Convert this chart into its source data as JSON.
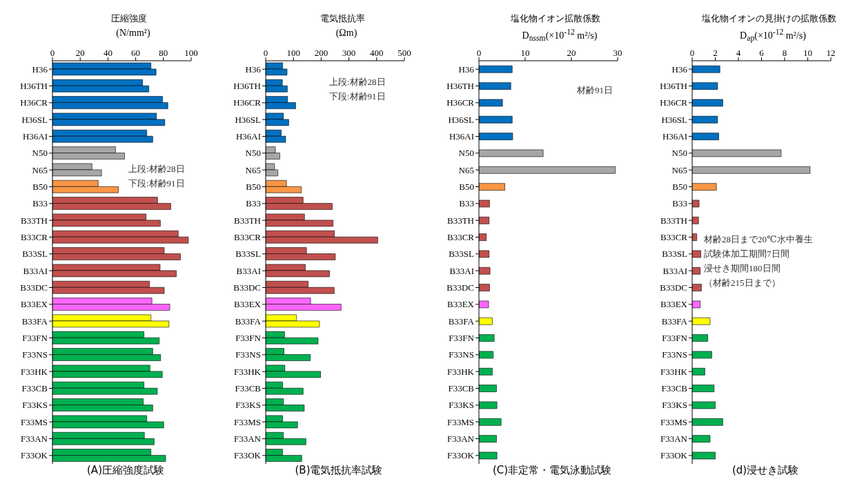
{
  "chart_data": [
    {
      "type": "bar",
      "orientation": "horizontal",
      "title": "圧縮強度",
      "xlabel": "(N/mm²)",
      "categories": [
        "H36",
        "H36TH",
        "H36CR",
        "H36SL",
        "H36AI",
        "N50",
        "N65",
        "B50",
        "B33",
        "B33TH",
        "B33CR",
        "B33SL",
        "B33AI",
        "B33DC",
        "B33EX",
        "B33FA",
        "F33FN",
        "F33NS",
        "F33HK",
        "F33CB",
        "F33KS",
        "F33MS",
        "F33AN",
        "F33OK"
      ],
      "xlim": [
        0,
        100
      ],
      "xticks": [
        0,
        20,
        40,
        60,
        80,
        100
      ],
      "series": [
        {
          "values": [
            71,
            65,
            79.4,
            75,
            68,
            45.5,
            28.5,
            33,
            75.8,
            67.5,
            90.7,
            80.6,
            77.6,
            70,
            71.7,
            71,
            66,
            72.3,
            70.3,
            66,
            65.5,
            68,
            66.3,
            71
          ],
          "colors": [
            "#0070c0",
            "#0070c0",
            "#0070c0",
            "#0070c0",
            "#0070c0",
            "#a6a6a6",
            "#a6a6a6",
            "#f79646",
            "#c0504d",
            "#c0504d",
            "#c0504d",
            "#c0504d",
            "#c0504d",
            "#c0504d",
            "#ff66ff",
            "#ffff00",
            "#00b050",
            "#00b050",
            "#00b050",
            "#00b050",
            "#00b050",
            "#00b050",
            "#00b050",
            "#00b050"
          ]
        },
        {
          "values": [
            74.7,
            69.5,
            83.2,
            81,
            72.3,
            52,
            35.4,
            47.5,
            85.3,
            77.8,
            98,
            92.3,
            89.3,
            80.6,
            84.6,
            84,
            77,
            78,
            79.2,
            75.6,
            72.3,
            80.2,
            73.3,
            81.6
          ],
          "colors": [
            "#0070c0",
            "#0070c0",
            "#0070c0",
            "#0070c0",
            "#0070c0",
            "#a6a6a6",
            "#a6a6a6",
            "#f79646",
            "#c0504d",
            "#c0504d",
            "#c0504d",
            "#c0504d",
            "#c0504d",
            "#c0504d",
            "#ff66ff",
            "#ffff00",
            "#00b050",
            "#00b050",
            "#00b050",
            "#00b050",
            "#00b050",
            "#00b050",
            "#00b050",
            "#00b050"
          ]
        }
      ],
      "annotations": [
        "上段:材齢28日",
        "下段:材齢91日",
        "(A)圧縮強度試験"
      ]
    },
    {
      "type": "bar",
      "orientation": "horizontal",
      "title": "電気抵抗率",
      "xlabel": "(Ωm)",
      "categories": [
        "H36",
        "H36TH",
        "H36CR",
        "H36SL",
        "H36AI",
        "N50",
        "N65",
        "B50",
        "B33",
        "B33TH",
        "B33CR",
        "B33SL",
        "B33AI",
        "B33DC",
        "B33EX",
        "B33FA",
        "F33FN",
        "F33NS",
        "F33HK",
        "F33CB",
        "F33KS",
        "F33MS",
        "F33AN",
        "F33OK"
      ],
      "xlim": [
        0,
        500
      ],
      "xticks": [
        0,
        100,
        200,
        300,
        400,
        500
      ],
      "series": [
        {
          "values": [
            61,
            60,
            79,
            64,
            56,
            35,
            32,
            75,
            135,
            140,
            248,
            147,
            143,
            153,
            162,
            111,
            68,
            66,
            69,
            61,
            64,
            61,
            64,
            61
          ],
          "colors": [
            "#0070c0",
            "#0070c0",
            "#0070c0",
            "#0070c0",
            "#0070c0",
            "#a6a6a6",
            "#a6a6a6",
            "#f79646",
            "#c0504d",
            "#c0504d",
            "#c0504d",
            "#c0504d",
            "#c0504d",
            "#c0504d",
            "#ff66ff",
            "#ffff00",
            "#00b050",
            "#00b050",
            "#00b050",
            "#00b050",
            "#00b050",
            "#00b050",
            "#00b050",
            "#00b050"
          ]
        },
        {
          "values": [
            77,
            78,
            108,
            83,
            72,
            51,
            44,
            129,
            240,
            243,
            404,
            251,
            230,
            247,
            272,
            194,
            189,
            161,
            198,
            135,
            139,
            115,
            145,
            130
          ],
          "colors": [
            "#0070c0",
            "#0070c0",
            "#0070c0",
            "#0070c0",
            "#0070c0",
            "#a6a6a6",
            "#a6a6a6",
            "#f79646",
            "#c0504d",
            "#c0504d",
            "#c0504d",
            "#c0504d",
            "#c0504d",
            "#c0504d",
            "#ff66ff",
            "#ffff00",
            "#00b050",
            "#00b050",
            "#00b050",
            "#00b050",
            "#00b050",
            "#00b050",
            "#00b050",
            "#00b050"
          ]
        }
      ],
      "annotations": [
        "上段:材齢28日",
        "下段:材齢91日",
        "(B)電気抵抗率試験"
      ]
    },
    {
      "type": "bar",
      "orientation": "horizontal",
      "title": "塩化物イオン拡散係数",
      "xlabel": "D$_{nssm}$(×10$^{-12}$ m²/s)",
      "categories": [
        "H36",
        "H36TH",
        "H36CR",
        "H36SL",
        "H36AI",
        "N50",
        "N65",
        "B50",
        "B33",
        "B33TH",
        "B33CR",
        "B33SL",
        "B33AI",
        "B33DC",
        "B33EX",
        "B33FA",
        "F33FN",
        "F33NS",
        "F33HK",
        "F33CB",
        "F33KS",
        "F33MS",
        "F33AN",
        "F33OK"
      ],
      "xlim": [
        0,
        30
      ],
      "xticks": [
        0,
        10,
        20,
        30
      ],
      "values": [
        7.2,
        6.9,
        5.1,
        7.2,
        7.3,
        13.9,
        29.5,
        5.6,
        2.3,
        2.2,
        1.6,
        2.2,
        2.4,
        2.3,
        2.1,
        2.9,
        3.3,
        3.1,
        2.9,
        3.8,
        3.9,
        4.8,
        3.8,
        3.9
      ],
      "colors": [
        "#0070c0",
        "#0070c0",
        "#0070c0",
        "#0070c0",
        "#0070c0",
        "#a6a6a6",
        "#a6a6a6",
        "#f79646",
        "#c0504d",
        "#c0504d",
        "#c0504d",
        "#c0504d",
        "#c0504d",
        "#c0504d",
        "#ff66ff",
        "#ffff00",
        "#00b050",
        "#00b050",
        "#00b050",
        "#00b050",
        "#00b050",
        "#00b050",
        "#00b050",
        "#00b050"
      ],
      "annotations": [
        "材齢91日",
        "(C)非定常・電気泳動試験"
      ]
    },
    {
      "type": "bar",
      "orientation": "horizontal",
      "title": "塩化物イオンの見掛けの拡散係数",
      "xlabel": "D$_{ap}$(×10$^{-12}$ m²/s)",
      "categories": [
        "H36",
        "H36TH",
        "H36CR",
        "H36SL",
        "H36AI",
        "N50",
        "N65",
        "B50",
        "B33",
        "B33TH",
        "B33CR",
        "B33SL",
        "B33AI",
        "B33DC",
        "B33EX",
        "B33FA",
        "F33FN",
        "F33NS",
        "F33HK",
        "F33CB",
        "F33KS",
        "F33MS",
        "F33AN",
        "F33OK"
      ],
      "xlim": [
        0,
        12
      ],
      "xticks": [
        0,
        2,
        4,
        6,
        8,
        10,
        12
      ],
      "values": [
        2.4,
        2.2,
        2.65,
        2.2,
        2.3,
        7.7,
        10.2,
        2.1,
        0.6,
        0.55,
        0.4,
        0.75,
        0.7,
        0.8,
        0.7,
        1.55,
        1.35,
        1.7,
        1.1,
        1.9,
        2,
        2.65,
        1.55,
        2
      ],
      "colors": [
        "#0070c0",
        "#0070c0",
        "#0070c0",
        "#0070c0",
        "#0070c0",
        "#a6a6a6",
        "#a6a6a6",
        "#f79646",
        "#c0504d",
        "#c0504d",
        "#c0504d",
        "#c0504d",
        "#c0504d",
        "#c0504d",
        "#ff66ff",
        "#ffff00",
        "#00b050",
        "#00b050",
        "#00b050",
        "#00b050",
        "#00b050",
        "#00b050",
        "#00b050",
        "#00b050"
      ],
      "annotations": [
        "材齢28日まで20℃水中養生",
        "試験体加工期間7日間",
        "浸せき期間180日間",
        "（材齢215日まで）",
        "(d)浸せき試験"
      ]
    }
  ]
}
